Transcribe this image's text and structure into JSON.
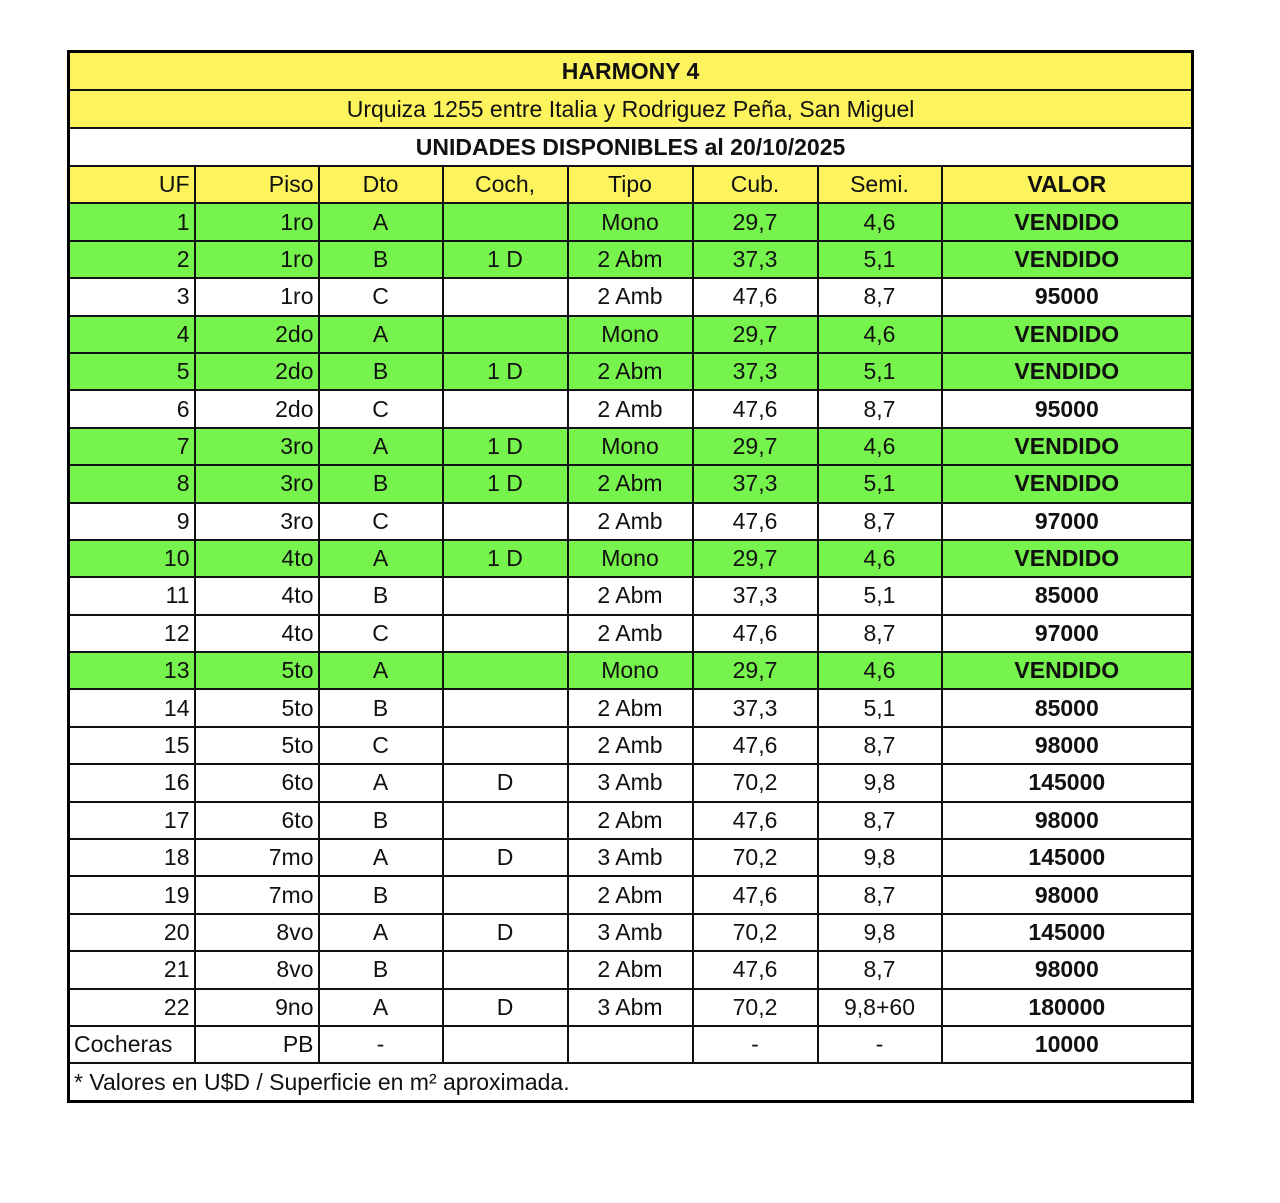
{
  "title": "HARMONY 4",
  "address": "Urquiza 1255 entre Italia y Rodriguez Peña, San Miguel",
  "subtitle": "UNIDADES DISPONIBLES al 20/10/2025",
  "colors": {
    "header": "#fdf35c",
    "sold": "#76f34c",
    "available": "#ffffff"
  },
  "columns": [
    "UF",
    "Piso",
    "Dto",
    "Coch,",
    "Tipo",
    "Cub.",
    "Semi.",
    "VALOR"
  ],
  "rows": [
    [
      "1",
      "1ro",
      "A",
      "",
      "Mono",
      "29,7",
      "4,6",
      "VENDIDO"
    ],
    [
      "2",
      "1ro",
      "B",
      "1 D",
      "2 Abm",
      "37,3",
      "5,1",
      "VENDIDO"
    ],
    [
      "3",
      "1ro",
      "C",
      "",
      "2 Amb",
      "47,6",
      "8,7",
      "95000"
    ],
    [
      "4",
      "2do",
      "A",
      "",
      "Mono",
      "29,7",
      "4,6",
      "VENDIDO"
    ],
    [
      "5",
      "2do",
      "B",
      "1 D",
      "2 Abm",
      "37,3",
      "5,1",
      "VENDIDO"
    ],
    [
      "6",
      "2do",
      "C",
      "",
      "2 Amb",
      "47,6",
      "8,7",
      "95000"
    ],
    [
      "7",
      "3ro",
      "A",
      "1 D",
      "Mono",
      "29,7",
      "4,6",
      "VENDIDO"
    ],
    [
      "8",
      "3ro",
      "B",
      "1 D",
      "2 Abm",
      "37,3",
      "5,1",
      "VENDIDO"
    ],
    [
      "9",
      "3ro",
      "C",
      "",
      "2 Amb",
      "47,6",
      "8,7",
      "97000"
    ],
    [
      "10",
      "4to",
      "A",
      "1 D",
      "Mono",
      "29,7",
      "4,6",
      "VENDIDO"
    ],
    [
      "11",
      "4to",
      "B",
      "",
      "2 Abm",
      "37,3",
      "5,1",
      "85000"
    ],
    [
      "12",
      "4to",
      "C",
      "",
      "2 Amb",
      "47,6",
      "8,7",
      "97000"
    ],
    [
      "13",
      "5to",
      "A",
      "",
      "Mono",
      "29,7",
      "4,6",
      "VENDIDO"
    ],
    [
      "14",
      "5to",
      "B",
      "",
      "2 Abm",
      "37,3",
      "5,1",
      "85000"
    ],
    [
      "15",
      "5to",
      "C",
      "",
      "2 Amb",
      "47,6",
      "8,7",
      "98000"
    ],
    [
      "16",
      "6to",
      "A",
      "D",
      "3 Amb",
      "70,2",
      "9,8",
      "145000"
    ],
    [
      "17",
      "6to",
      "B",
      "",
      "2 Abm",
      "47,6",
      "8,7",
      "98000"
    ],
    [
      "18",
      "7mo",
      "A",
      "D",
      "3 Amb",
      "70,2",
      "9,8",
      "145000"
    ],
    [
      "19",
      "7mo",
      "B",
      "",
      "2 Abm",
      "47,6",
      "8,7",
      "98000"
    ],
    [
      "20",
      "8vo",
      "A",
      "D",
      "3 Amb",
      "70,2",
      "9,8",
      "145000"
    ],
    [
      "21",
      "8vo",
      "B",
      "",
      "2 Abm",
      "47,6",
      "8,7",
      "98000"
    ],
    [
      "22",
      "9no",
      "A",
      "D",
      "3 Abm",
      "70,2",
      "9,8+60",
      "180000"
    ],
    [
      "Cocheras",
      "PB",
      "-",
      "",
      "",
      "-",
      "-",
      "10000"
    ]
  ],
  "footnote": "* Valores en U$D / Superficie en m² aproximada."
}
